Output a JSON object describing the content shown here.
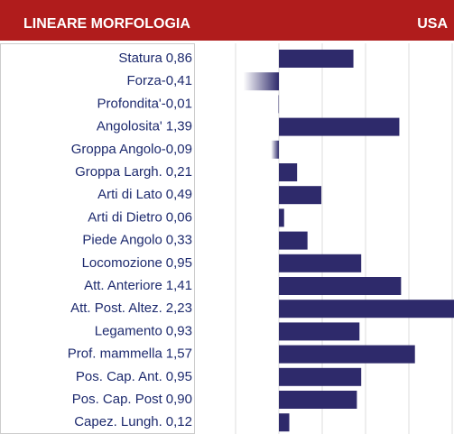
{
  "chart_data": {
    "type": "bar",
    "orientation": "horizontal",
    "title": "LINEARE MORFOLOGIA",
    "subtitle": "USA",
    "categories": [
      "Statura",
      "Forza",
      "Profondita'",
      "Angolosita'",
      "Groppa Angolo",
      "Groppa Largh.",
      "Arti di Lato",
      "Arti di Dietro",
      "Piede Angolo",
      "Locomozione",
      "Att. Anteriore",
      "Att. Post. Altez.",
      "Legamento",
      "Prof. mammella",
      "Pos. Cap. Ant.",
      "Pos. Cap. Post",
      "Capez. Lungh."
    ],
    "values": [
      0.86,
      -0.41,
      -0.01,
      1.39,
      -0.09,
      0.21,
      0.49,
      0.06,
      0.33,
      0.95,
      1.41,
      2.23,
      0.93,
      1.57,
      0.95,
      0.9,
      0.12
    ],
    "value_labels": [
      "0,86",
      "-0,41",
      "-0,01",
      "1,39",
      "-0,09",
      "0,21",
      "0,49",
      "0,06",
      "0,33",
      "0,95",
      "1,41",
      "2,23",
      "0,93",
      "1,57",
      "0,95",
      "0,90",
      "0,12"
    ],
    "color": "#2e2a6b",
    "header_color": "#b01c1c",
    "xlim": [
      -1,
      2
    ],
    "xticks": [
      -1,
      -0.5,
      0,
      0.5,
      1,
      1.5,
      2
    ],
    "grid": true
  }
}
